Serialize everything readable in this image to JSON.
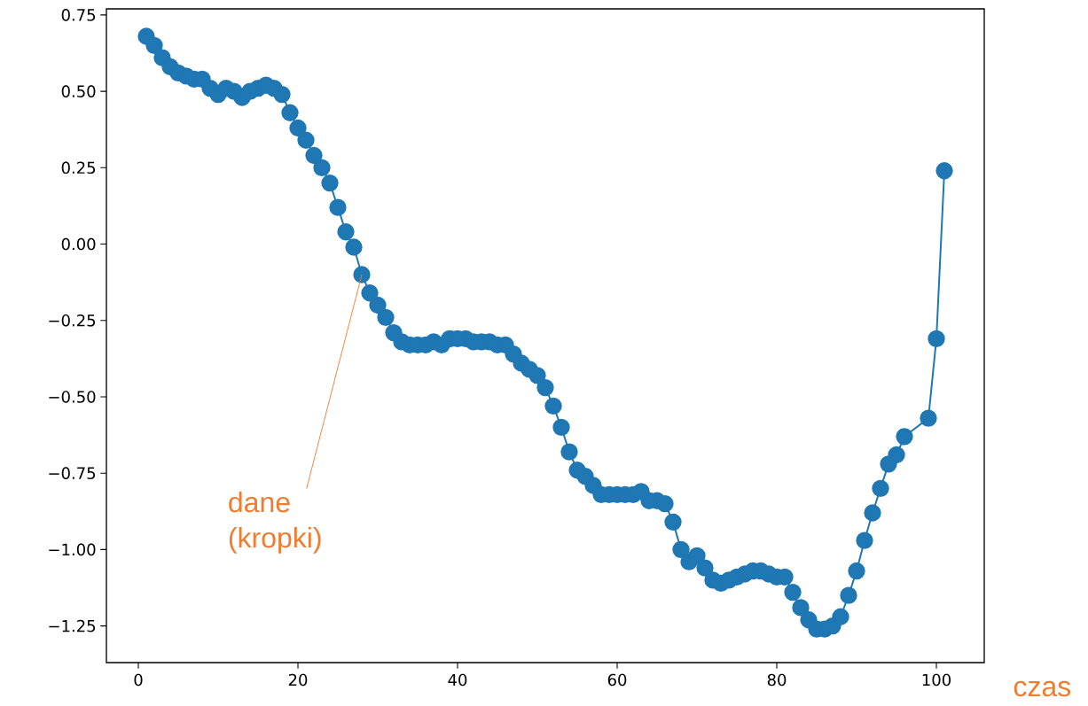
{
  "chart_data": {
    "type": "line",
    "xlabel": "czas",
    "x": [
      1,
      2,
      3,
      4,
      5,
      6,
      7,
      8,
      9,
      10,
      11,
      12,
      13,
      14,
      15,
      16,
      17,
      18,
      19,
      20,
      21,
      22,
      23,
      24,
      25,
      26,
      27,
      28,
      29,
      30,
      31,
      32,
      33,
      34,
      35,
      36,
      37,
      38,
      39,
      40,
      41,
      42,
      43,
      44,
      45,
      46,
      47,
      48,
      49,
      50,
      51,
      52,
      53,
      54,
      55,
      56,
      57,
      58,
      59,
      60,
      61,
      62,
      63,
      64,
      65,
      66,
      67,
      68,
      69,
      70,
      71,
      72,
      73,
      74,
      75,
      76,
      77,
      78,
      79,
      80,
      81,
      82,
      83,
      84,
      85,
      86,
      87,
      88,
      89,
      90,
      91,
      92,
      93,
      94,
      95,
      96,
      99,
      100,
      101
    ],
    "series": [
      {
        "color": "#1f77b4",
        "values": [
          0.68,
          0.65,
          0.61,
          0.58,
          0.56,
          0.55,
          0.54,
          0.54,
          0.51,
          0.49,
          0.51,
          0.5,
          0.48,
          0.5,
          0.51,
          0.52,
          0.51,
          0.49,
          0.43,
          0.38,
          0.34,
          0.29,
          0.25,
          0.2,
          0.12,
          0.04,
          -0.01,
          -0.1,
          -0.16,
          -0.2,
          -0.24,
          -0.29,
          -0.32,
          -0.33,
          -0.33,
          -0.33,
          -0.32,
          -0.33,
          -0.31,
          -0.31,
          -0.31,
          -0.32,
          -0.32,
          -0.32,
          -0.33,
          -0.33,
          -0.36,
          -0.39,
          -0.41,
          -0.43,
          -0.47,
          -0.53,
          -0.6,
          -0.68,
          -0.74,
          -0.76,
          -0.79,
          -0.82,
          -0.82,
          -0.82,
          -0.82,
          -0.82,
          -0.81,
          -0.84,
          -0.84,
          -0.85,
          -0.91,
          -1.0,
          -1.04,
          -1.02,
          -1.06,
          -1.1,
          -1.11,
          -1.1,
          -1.09,
          -1.08,
          -1.07,
          -1.07,
          -1.08,
          -1.09,
          -1.09,
          -1.14,
          -1.19,
          -1.23,
          -1.26,
          -1.26,
          -1.25,
          -1.22,
          -1.15,
          -1.07,
          -0.97,
          -0.88,
          -0.8,
          -0.72,
          -0.69,
          -0.63,
          -0.57,
          -0.31,
          0.24
        ]
      }
    ],
    "marker": "circle",
    "line_style": "solid",
    "xlim": [
      -4,
      106
    ],
    "ylim": [
      -1.37,
      0.77
    ],
    "xticks": [
      0,
      20,
      40,
      60,
      80,
      100
    ],
    "yticks": [
      {
        "value": -1.25,
        "label": "−1.25"
      },
      {
        "value": -1.0,
        "label": "−1.00"
      },
      {
        "value": -0.75,
        "label": "−0.75"
      },
      {
        "value": -0.5,
        "label": "−0.50"
      },
      {
        "value": -0.25,
        "label": "−0.25"
      },
      {
        "value": 0,
        "label": "0.00"
      },
      {
        "value": 0.25,
        "label": "0.25"
      },
      {
        "value": 0.5,
        "label": "0.50"
      },
      {
        "value": 0.75,
        "label": "0.75"
      }
    ],
    "annotations": [
      {
        "text": "dane (kropki)",
        "x": 28,
        "y": -0.1
      }
    ]
  }
}
